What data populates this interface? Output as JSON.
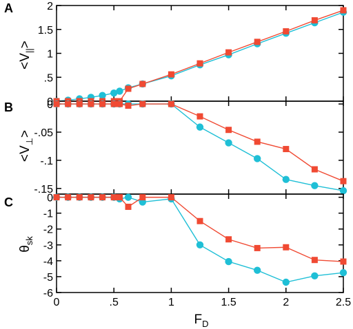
{
  "chart_data": {
    "type": "line",
    "xlabel": {
      "main": "F",
      "sub": "D"
    },
    "xlim": [
      0,
      2.5
    ],
    "xticks": [
      0,
      0.5,
      1,
      1.5,
      2,
      2.5
    ],
    "colors": {
      "cyan": "#1fbfd6",
      "red": "#f04a33"
    },
    "panels": [
      {
        "letter": "A",
        "ylabel": {
          "main": "<V",
          "sub": "||",
          "end": ">"
        },
        "ylim": [
          0,
          2
        ],
        "yticks": [
          0,
          0.5,
          1,
          1.5,
          2
        ],
        "series": [
          {
            "marker": "circle",
            "color": "#1fbfd6",
            "x": [
              0,
              0.1,
              0.2,
              0.3,
              0.4,
              0.5,
              0.55,
              0.625,
              0.75,
              1,
              1.25,
              1.5,
              1.75,
              2,
              2.25,
              2.5
            ],
            "y": [
              0,
              0.02,
              0.05,
              0.08,
              0.12,
              0.17,
              0.21,
              0.28,
              0.36,
              0.53,
              0.76,
              0.97,
              1.2,
              1.42,
              1.64,
              1.86
            ]
          },
          {
            "marker": "square",
            "color": "#f04a33",
            "x": [
              0,
              0.1,
              0.2,
              0.3,
              0.4,
              0.5,
              0.55,
              0.625,
              0.75,
              1,
              1.25,
              1.5,
              1.75,
              2,
              2.25,
              2.5
            ],
            "y": [
              0,
              0,
              0,
              0,
              0,
              0,
              0,
              0.26,
              0.36,
              0.56,
              0.79,
              1.02,
              1.24,
              1.46,
              1.69,
              1.9
            ]
          }
        ]
      },
      {
        "letter": "B",
        "ylabel": {
          "main": "<V",
          "sub": "⊥",
          "end": ">"
        },
        "ylim": [
          -0.16,
          0.005
        ],
        "yticks": [
          0,
          -0.05,
          -0.1,
          -0.15
        ],
        "series": [
          {
            "marker": "circle",
            "color": "#1fbfd6",
            "x": [
              0,
              0.1,
              0.2,
              0.3,
              0.4,
              0.5,
              0.55,
              0.625,
              0.75,
              1,
              1.25,
              1.5,
              1.75,
              2,
              2.25,
              2.5
            ],
            "y": [
              0,
              0,
              0,
              0,
              0,
              0,
              0,
              0,
              0,
              0,
              -0.041,
              -0.069,
              -0.097,
              -0.134,
              -0.145,
              -0.154
            ]
          },
          {
            "marker": "square",
            "color": "#f04a33",
            "x": [
              0,
              0.1,
              0.2,
              0.3,
              0.4,
              0.5,
              0.55,
              0.625,
              0.75,
              1,
              1.25,
              1.5,
              1.75,
              2,
              2.25,
              2.5
            ],
            "y": [
              0,
              0,
              0,
              0,
              0,
              0,
              0,
              -0.003,
              0,
              0,
              -0.022,
              -0.046,
              -0.067,
              -0.08,
              -0.116,
              -0.137
            ]
          }
        ]
      },
      {
        "letter": "C",
        "ylabel": {
          "main": "θ",
          "sub": "sk",
          "end": ""
        },
        "ylim": [
          -6,
          0.2
        ],
        "yticks": [
          0,
          -1,
          -2,
          -3,
          -4,
          -5,
          -6
        ],
        "series": [
          {
            "marker": "circle",
            "color": "#1fbfd6",
            "x": [
              0,
              0.1,
              0.2,
              0.3,
              0.4,
              0.5,
              0.55,
              0.625,
              0.75,
              1,
              1.25,
              1.5,
              1.75,
              2,
              2.25,
              2.5
            ],
            "y": [
              0,
              0,
              0,
              0,
              0,
              0,
              -0.1,
              0,
              -0.3,
              -0.1,
              -3.0,
              -4.05,
              -4.6,
              -5.35,
              -4.95,
              -4.75
            ]
          },
          {
            "marker": "square",
            "color": "#f04a33",
            "x": [
              0,
              0.1,
              0.2,
              0.3,
              0.4,
              0.5,
              0.55,
              0.625,
              0.75,
              1,
              1.25,
              1.5,
              1.75,
              2,
              2.25,
              2.5
            ],
            "y": [
              0,
              0,
              0,
              0,
              0,
              0,
              0,
              -0.6,
              0,
              0,
              -1.5,
              -2.65,
              -3.2,
              -3.15,
              -3.95,
              -4.05
            ]
          }
        ]
      }
    ]
  }
}
